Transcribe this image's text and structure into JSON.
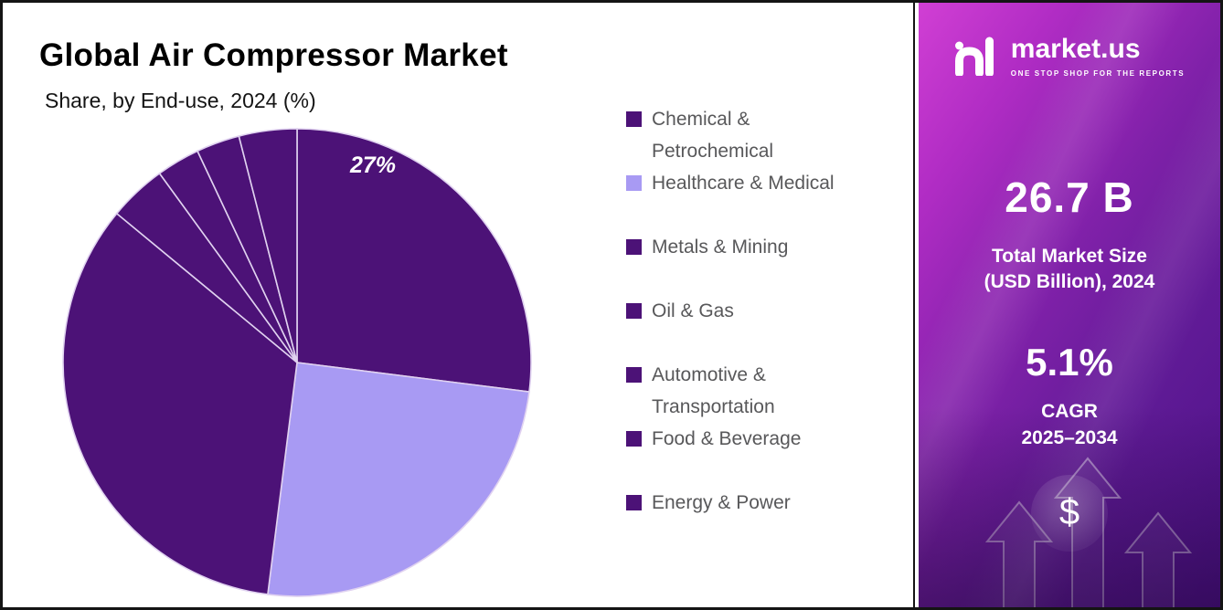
{
  "chart_data": {
    "type": "pie",
    "title": "Global Air Compressor Market",
    "subtitle": "Share, by End-use, 2024 (%)",
    "categories": [
      "Chemical & Petrochemical",
      "Healthcare & Medical",
      "Metals & Mining",
      "Oil & Gas",
      "Automotive & Transportation",
      "Food & Beverage",
      "Energy & Power"
    ],
    "values": [
      27,
      25,
      34,
      4,
      3,
      3,
      4
    ],
    "labels": [
      "27%",
      "",
      "",
      "",
      "",
      "",
      ""
    ],
    "colors": [
      "#4c1277",
      "#a89af3",
      "#4c1277",
      "#4c1277",
      "#4c1277",
      "#4c1277",
      "#4c1277"
    ],
    "divider_color": "#e0d2f0",
    "legend_position": "right",
    "start_angle": -90,
    "clockwise": true
  },
  "sidebar": {
    "logo": {
      "brand": "market.us",
      "tagline": "ONE STOP SHOP FOR THE REPORTS"
    },
    "market_size": {
      "value": "26.7 B",
      "label_line1": "Total Market Size",
      "label_line2": "(USD Billion), 2024"
    },
    "cagr": {
      "value": "5.1%",
      "label_line1": "CAGR",
      "label_line2": "2025–2034"
    },
    "dollar_symbol": "$"
  }
}
